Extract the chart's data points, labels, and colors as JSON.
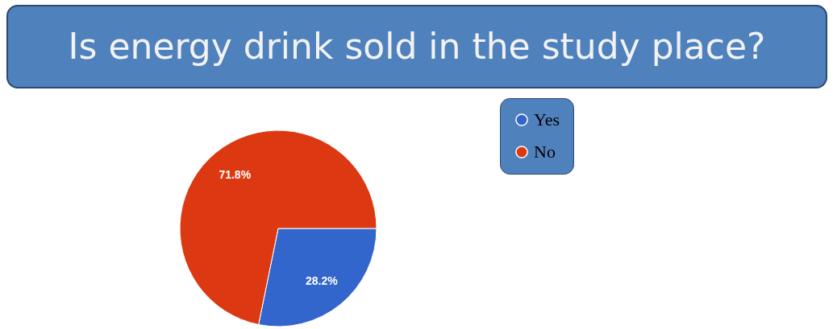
{
  "chart_data": {
    "type": "pie",
    "title": "Is energy drink sold in the study place?",
    "categories": [
      "Yes",
      "No"
    ],
    "values": [
      28.2,
      71.8
    ],
    "colors": [
      "#3366cc",
      "#dc3912"
    ],
    "value_labels": [
      "28.2%",
      "71.8%"
    ],
    "legend": "right"
  }
}
